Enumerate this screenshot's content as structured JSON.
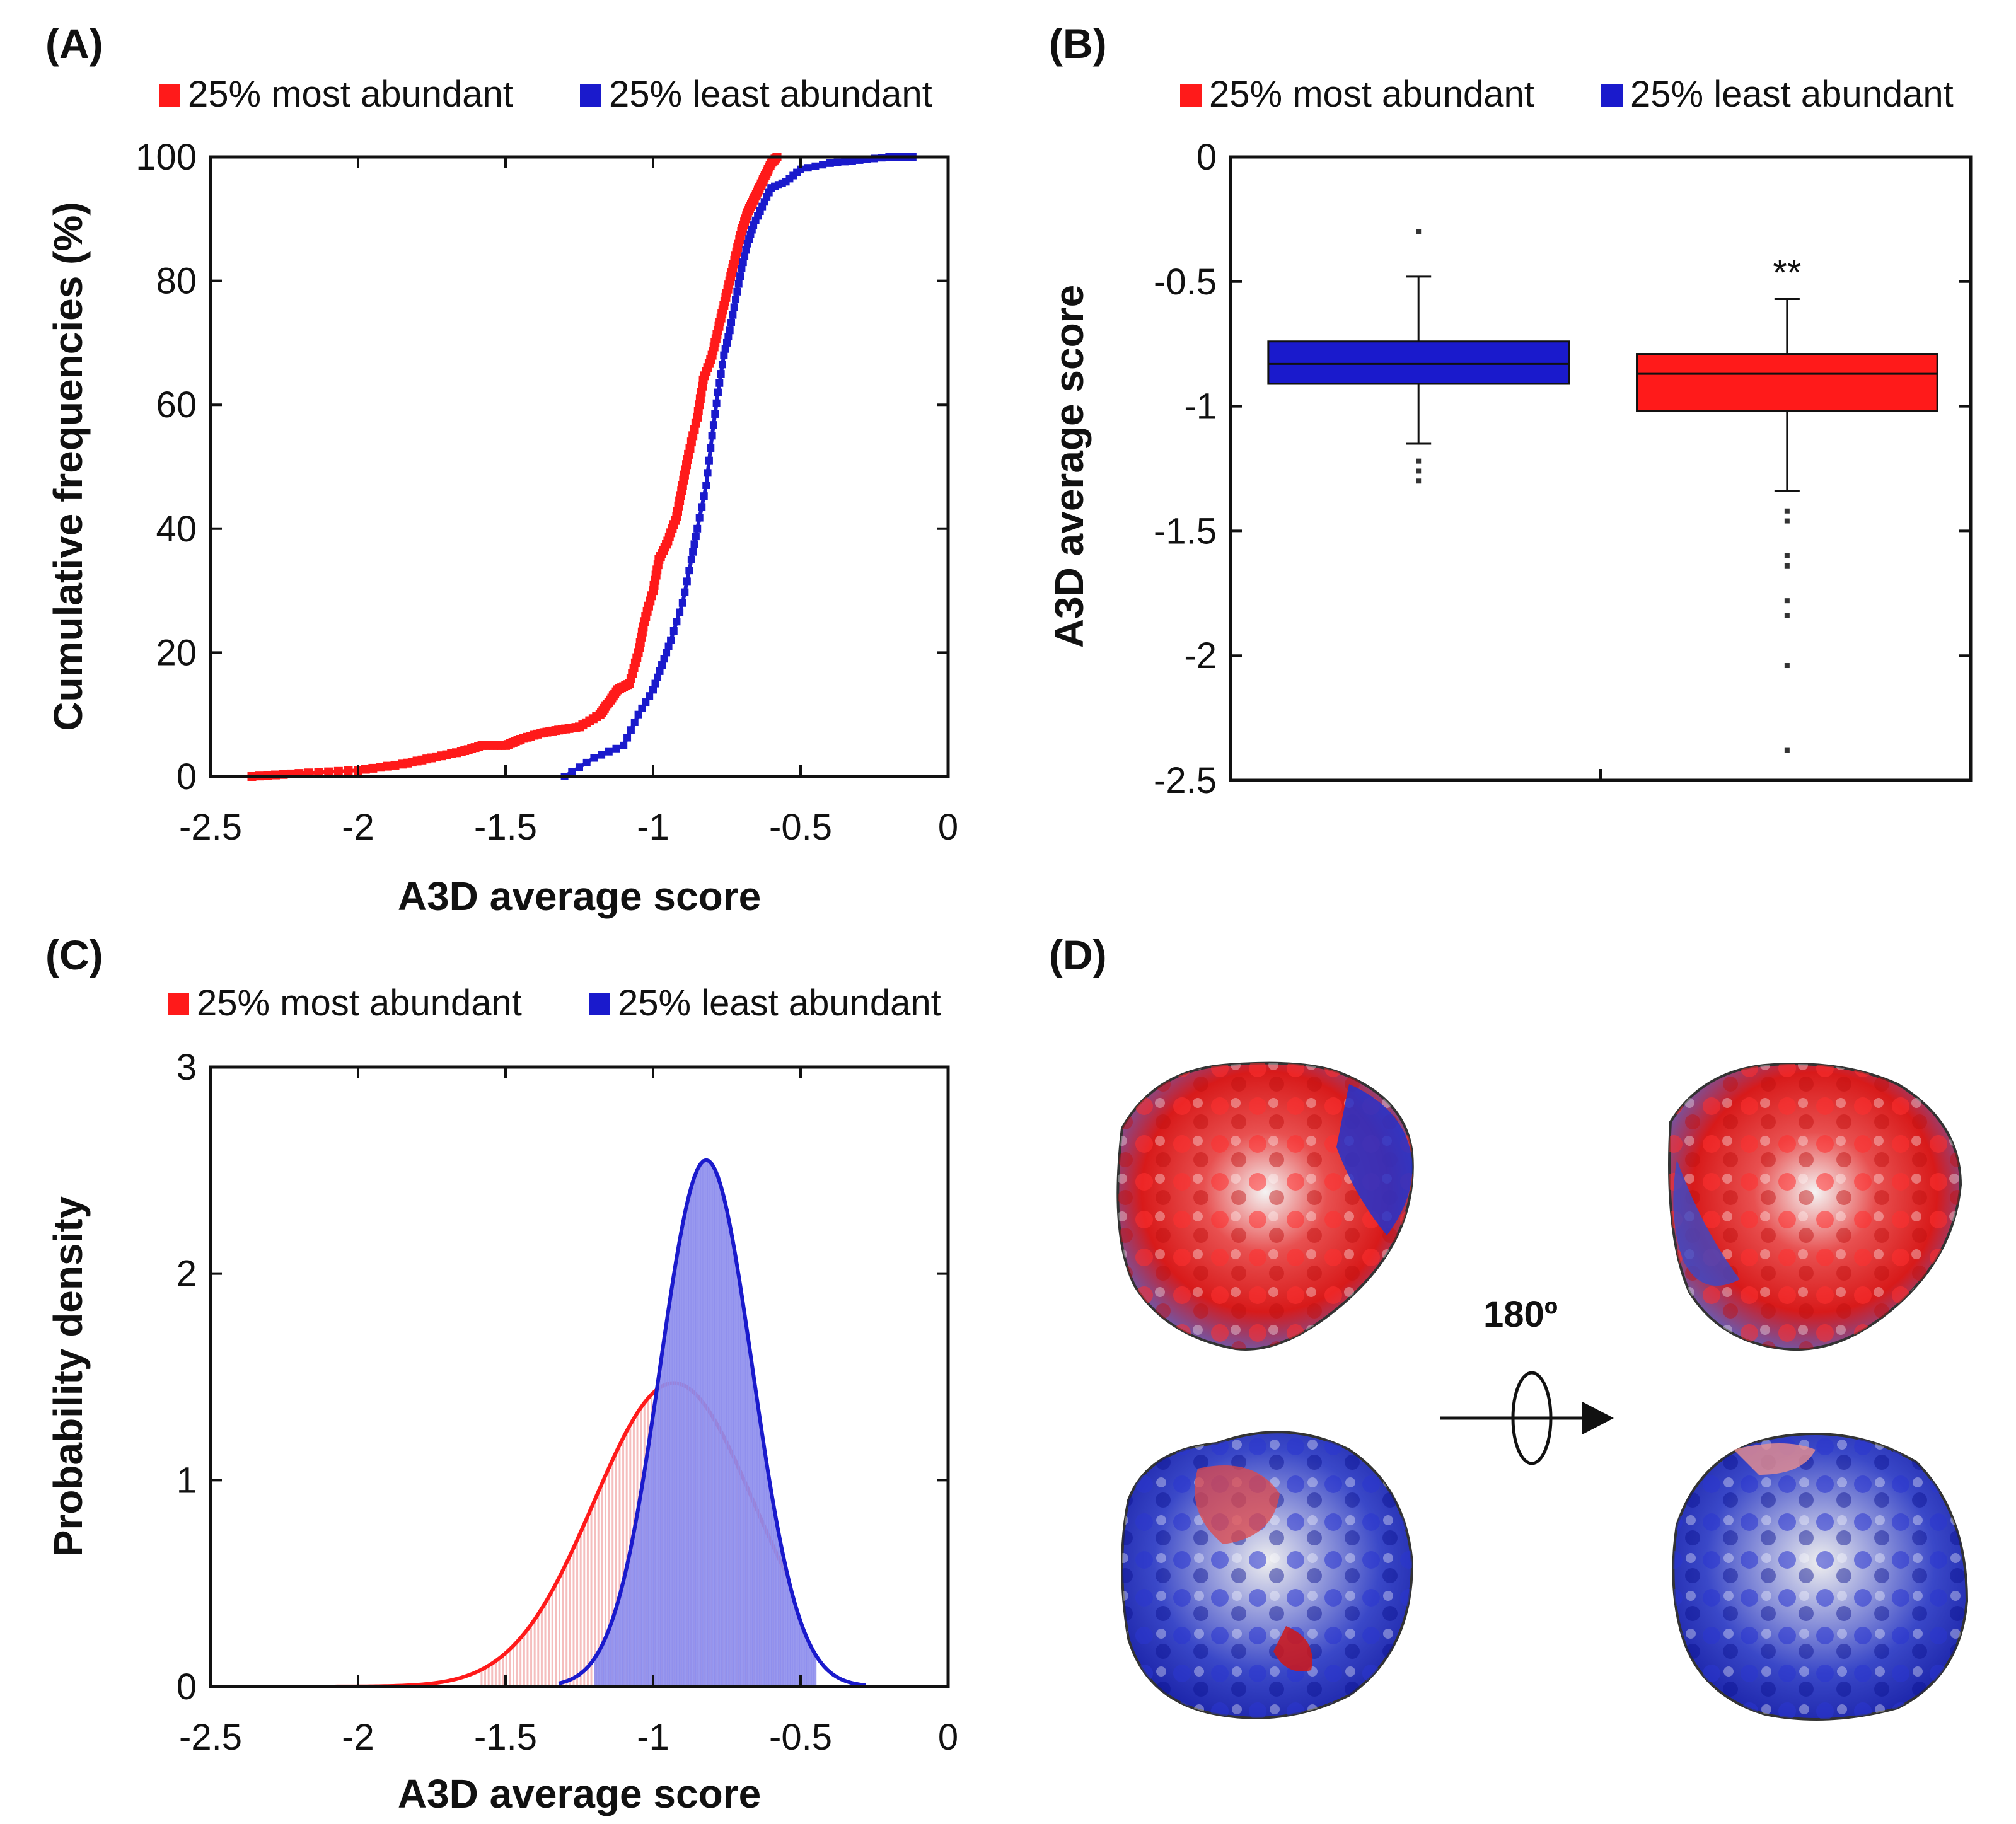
{
  "figure": {
    "panel_labels": [
      "(A)",
      "(B)",
      "(C)",
      "(D)"
    ],
    "legend": {
      "most": "25% most abundant",
      "least": "25% least abundant"
    },
    "colors": {
      "most": "#ff1a1a",
      "least": "#1a1acc",
      "most_fill": "#f5b8b8",
      "least_fill": "#8f8fee"
    }
  },
  "chart_data": [
    {
      "panel": "(A)",
      "type": "line",
      "title": "",
      "xlabel": "A3D average score",
      "ylabel": "Cumulative frequencies (%)",
      "xlim": [
        -2.5,
        0
      ],
      "ylim": [
        0,
        100
      ],
      "xticks": [
        "-2.5",
        "-2",
        "-1.5",
        "-1",
        "-0.5",
        "0"
      ],
      "yticks": [
        "0",
        "20",
        "40",
        "60",
        "80",
        "100"
      ],
      "series": [
        {
          "name": "25% most abundant",
          "color": "#ff1a1a",
          "x": [
            -2.36,
            -2.2,
            -2.0,
            -1.85,
            -1.75,
            -1.65,
            -1.58,
            -1.5,
            -1.45,
            -1.38,
            -1.32,
            -1.25,
            -1.18,
            -1.15,
            -1.12,
            -1.08,
            -1.05,
            -1.03,
            -1.0,
            -0.98,
            -0.95,
            -0.92,
            -0.9,
            -0.88,
            -0.85,
            -0.83,
            -0.8,
            -0.78,
            -0.76,
            -0.74,
            -0.72,
            -0.7,
            -0.68,
            -0.66,
            -0.64,
            -0.62,
            -0.6,
            -0.58
          ],
          "y": [
            0,
            0.5,
            1,
            2,
            3,
            4,
            5,
            5,
            6,
            7,
            7.5,
            8,
            10,
            12,
            14,
            15,
            20,
            25,
            30,
            35,
            38,
            42,
            47,
            52,
            58,
            64,
            68,
            72,
            76,
            80,
            84,
            88,
            91,
            93,
            95,
            97,
            99,
            100
          ]
        },
        {
          "name": "25% least abundant",
          "color": "#1a1acc",
          "x": [
            -1.3,
            -1.2,
            -1.1,
            -1.05,
            -1.0,
            -0.97,
            -0.94,
            -0.9,
            -0.87,
            -0.85,
            -0.82,
            -0.8,
            -0.78,
            -0.76,
            -0.74,
            -0.72,
            -0.7,
            -0.68,
            -0.66,
            -0.63,
            -0.6,
            -0.55,
            -0.5,
            -0.4,
            -0.3,
            -0.2,
            -0.12
          ],
          "y": [
            0,
            3,
            5,
            10,
            14,
            18,
            22,
            28,
            35,
            40,
            47,
            55,
            62,
            68,
            72,
            77,
            82,
            86,
            89,
            92,
            95,
            96,
            98,
            99,
            99.5,
            100,
            100
          ]
        }
      ]
    },
    {
      "panel": "(B)",
      "type": "box",
      "title": "",
      "xlabel": "",
      "ylabel": "A3D average score",
      "ylim": [
        -2.5,
        0
      ],
      "yticks": [
        "-2.5",
        "-2",
        "-1.5",
        "-1",
        "-0.5",
        "0"
      ],
      "annotation": "**",
      "series": [
        {
          "name": "25% least abundant",
          "color": "#1a1acc",
          "q1": -0.91,
          "median": -0.83,
          "q3": -0.74,
          "whisker_low": -1.15,
          "whisker_high": -0.48,
          "outliers": [
            -0.3,
            -1.22,
            -1.26,
            -1.3
          ]
        },
        {
          "name": "25% most abundant",
          "color": "#ff1a1a",
          "q1": -1.02,
          "median": -0.87,
          "q3": -0.79,
          "whisker_low": -1.34,
          "whisker_high": -0.57,
          "outliers": [
            -1.42,
            -1.46,
            -1.6,
            -1.64,
            -1.78,
            -1.84,
            -2.04,
            -2.38
          ]
        }
      ]
    },
    {
      "panel": "(C)",
      "type": "area",
      "title": "",
      "xlabel": "A3D average score",
      "ylabel": "Probability density",
      "xlim": [
        -2.5,
        0
      ],
      "ylim": [
        0,
        3
      ],
      "xticks": [
        "-2.5",
        "-2",
        "-1.5",
        "-1",
        "-0.5",
        "0"
      ],
      "yticks": [
        "0",
        "1",
        "2",
        "3"
      ],
      "series": [
        {
          "name": "25% most abundant",
          "color": "#ff1a1a",
          "distribution": "normal",
          "mean": -0.93,
          "peak_density": 1.47,
          "support": [
            -2.38,
            -0.55
          ]
        },
        {
          "name": "25% least abundant",
          "color": "#1a1acc",
          "distribution": "normal",
          "mean": -0.82,
          "peak_density": 2.55,
          "support": [
            -1.32,
            -0.28
          ]
        }
      ]
    }
  ],
  "panel_d": {
    "rotation_label": "180º",
    "images": [
      "protein-surface-top-left",
      "protein-surface-top-right",
      "protein-surface-bottom-left",
      "protein-surface-bottom-right"
    ]
  }
}
